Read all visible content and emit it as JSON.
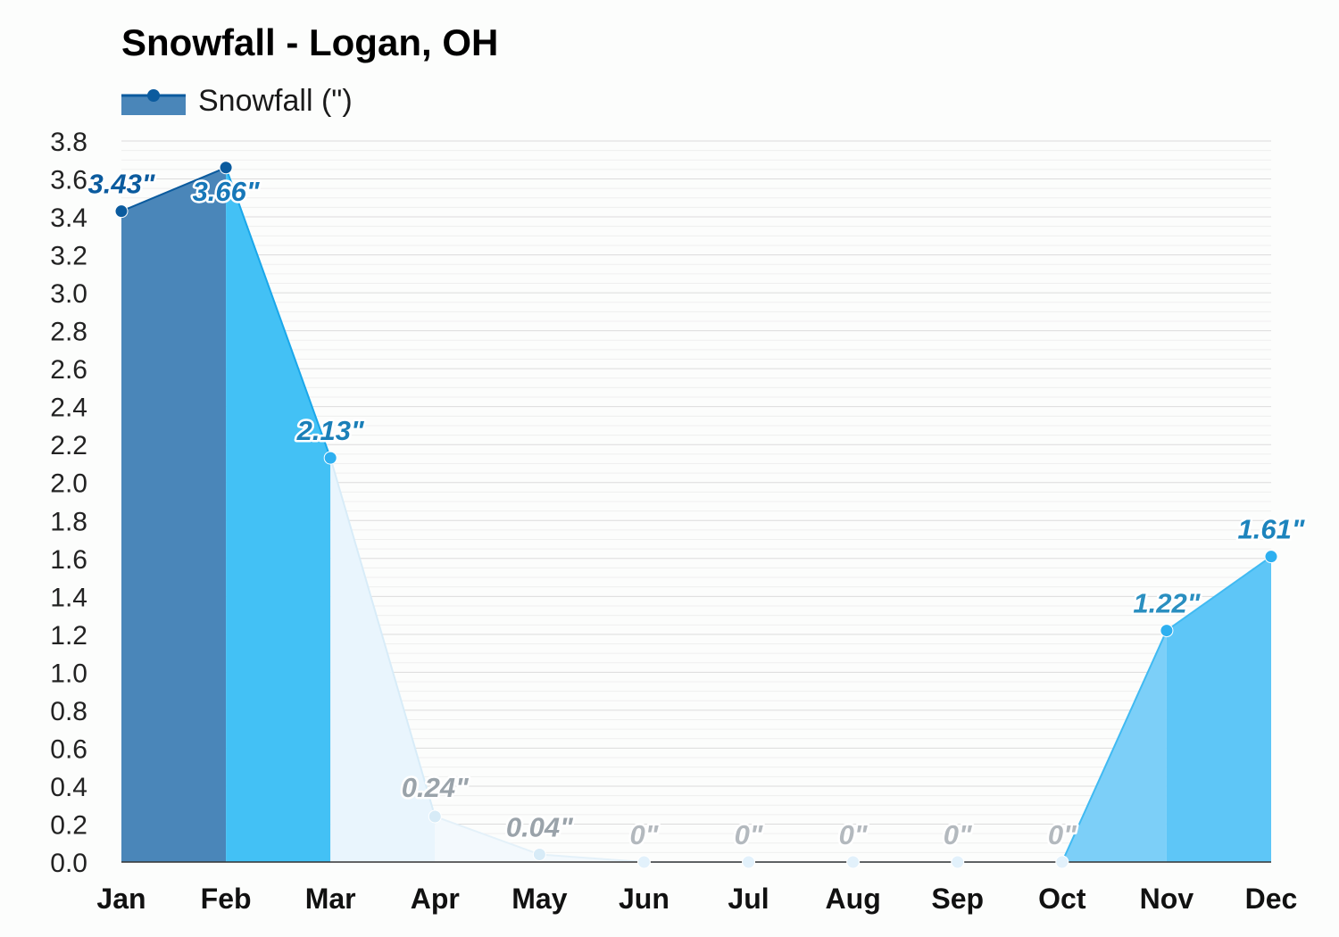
{
  "title": "Snowfall - Logan, OH",
  "legend": {
    "label": "Snowfall (\")"
  },
  "colors": {
    "jan": "#4a86b9",
    "feb": "#43c1f5",
    "mar": "#e9f5fd",
    "spring": "#f3f9fd",
    "nov": "#7ccff8",
    "dec": "#5ec6f7",
    "grid": "#e4e4e4",
    "dark_marker": "#0b5b9e",
    "light_marker": "#2eb0f0"
  },
  "chart_data": {
    "type": "area",
    "title": "Snowfall - Logan, OH",
    "xlabel": "",
    "ylabel": "",
    "categories": [
      "Jan",
      "Feb",
      "Mar",
      "Apr",
      "May",
      "Jun",
      "Jul",
      "Aug",
      "Sep",
      "Oct",
      "Nov",
      "Dec"
    ],
    "series": [
      {
        "name": "Snowfall (\")",
        "values": [
          3.43,
          3.66,
          2.13,
          0.24,
          0.04,
          0,
          0,
          0,
          0,
          0,
          1.22,
          1.61
        ],
        "labels": [
          "3.43\"",
          "3.66\"",
          "2.13\"",
          "0.24\"",
          "0.04\"",
          "0\"",
          "0\"",
          "0\"",
          "0\"",
          "0\"",
          "1.22\"",
          "1.61\""
        ]
      }
    ],
    "ylim": [
      0,
      3.8
    ],
    "yticks": [
      "0.0",
      "0.2",
      "0.4",
      "0.6",
      "0.8",
      "1.0",
      "1.2",
      "1.4",
      "1.6",
      "1.8",
      "2.0",
      "2.2",
      "2.4",
      "2.6",
      "2.8",
      "3.0",
      "3.2",
      "3.4",
      "3.6",
      "3.8"
    ],
    "grid": true,
    "legend_position": "top-left"
  }
}
